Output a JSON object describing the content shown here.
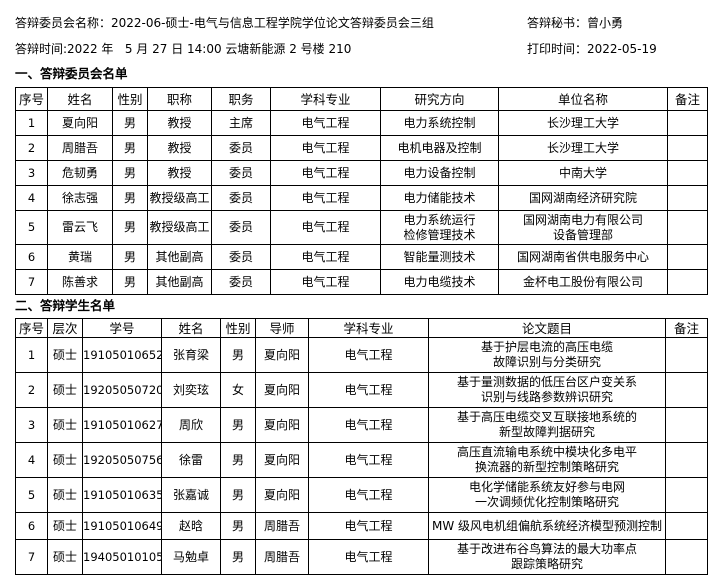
{
  "header": {
    "committee_label": "答辩委员会名称：",
    "committee_name": "2022-06-硕士-电气与信息工程学院学位论文答辩委员会三组",
    "secretary_label": "答辩秘书：",
    "secretary_name": "曾小勇",
    "time_label": "答辩时间:",
    "time_value": "2022 年   5 月 27 日 14:00 云塘新能源 2 号楼 210",
    "print_label": "打印时间：",
    "print_value": "2022-05-19"
  },
  "committee": {
    "title": "一、答辩委员会名单",
    "columns": [
      "序号",
      "姓名",
      "性别",
      "职称",
      "职务",
      "学科专业",
      "研究方向",
      "单位名称",
      "备注"
    ],
    "rows": [
      [
        "1",
        "夏向阳",
        "男",
        "教授",
        "主席",
        "电气工程",
        [
          "电力系统控制"
        ],
        [
          "长沙理工大学"
        ],
        ""
      ],
      [
        "2",
        "周腊吾",
        "男",
        "教授",
        "委员",
        "电气工程",
        [
          "电机电器及控制"
        ],
        [
          "长沙理工大学"
        ],
        ""
      ],
      [
        "3",
        "危韧勇",
        "男",
        "教授",
        "委员",
        "电气工程",
        [
          "电力设备控制"
        ],
        [
          "中南大学"
        ],
        ""
      ],
      [
        "4",
        "徐志强",
        "男",
        "教授级高工",
        "委员",
        "电气工程",
        [
          "电力储能技术"
        ],
        [
          "国网湖南经济研究院"
        ],
        ""
      ],
      [
        "5",
        "雷云飞",
        "男",
        "教授级高工",
        "委员",
        "电气工程",
        [
          "电力系统运行",
          "检修管理技术"
        ],
        [
          "国网湖南电力有限公司",
          "设备管理部"
        ],
        ""
      ],
      [
        "6",
        "黄瑞",
        "男",
        "其他副高",
        "委员",
        "电气工程",
        [
          "智能量测技术"
        ],
        [
          "国网湖南省供电服务中心"
        ],
        ""
      ],
      [
        "7",
        "陈善求",
        "男",
        "其他副高",
        "委员",
        "电气工程",
        [
          "电力电缆技术"
        ],
        [
          "金杯电工股份有限公司"
        ],
        ""
      ]
    ]
  },
  "students": {
    "title": "二、答辩学生名单",
    "columns": [
      "序号",
      "层次",
      "学号",
      "姓名",
      "性别",
      "导师",
      "学科专业",
      "论文题目",
      "备注"
    ],
    "rows": [
      [
        "1",
        "硕士",
        "19105010652",
        "张育梁",
        "男",
        "夏向阳",
        "电气工程",
        [
          "基于护层电流的高压电缆",
          "故障识别与分类研究"
        ],
        ""
      ],
      [
        "2",
        "硕士",
        "19205050720",
        "刘奕玹",
        "女",
        "夏向阳",
        "电气工程",
        [
          "基于量测数据的低压台区户变关系",
          "识别与线路参数辨识研究"
        ],
        ""
      ],
      [
        "3",
        "硕士",
        "19105010627",
        "周欣",
        "男",
        "夏向阳",
        "电气工程",
        [
          "基于高压电缆交叉互联接地系统的",
          "新型故障判据研究"
        ],
        ""
      ],
      [
        "4",
        "硕士",
        "19205050756",
        "徐雷",
        "男",
        "夏向阳",
        "电气工程",
        [
          "高压直流输电系统中模块化多电平",
          "换流器的新型控制策略研究"
        ],
        ""
      ],
      [
        "5",
        "硕士",
        "19105010635",
        "张嘉诚",
        "男",
        "夏向阳",
        "电气工程",
        [
          "电化学储能系统友好参与电网",
          "一次调频优化控制策略研究"
        ],
        ""
      ],
      [
        "6",
        "硕士",
        "19105010649",
        "赵晗",
        "男",
        "周腊吾",
        "电气工程",
        [
          "MW 级风电机组偏航系统经济模型预测控制"
        ],
        ""
      ],
      [
        "7",
        "硕士",
        "19405010105",
        "马勉卓",
        "男",
        "周腊吾",
        "电气工程",
        [
          "基于改进布谷鸟算法的最大功率点",
          "跟踪策略研究"
        ],
        ""
      ]
    ]
  }
}
